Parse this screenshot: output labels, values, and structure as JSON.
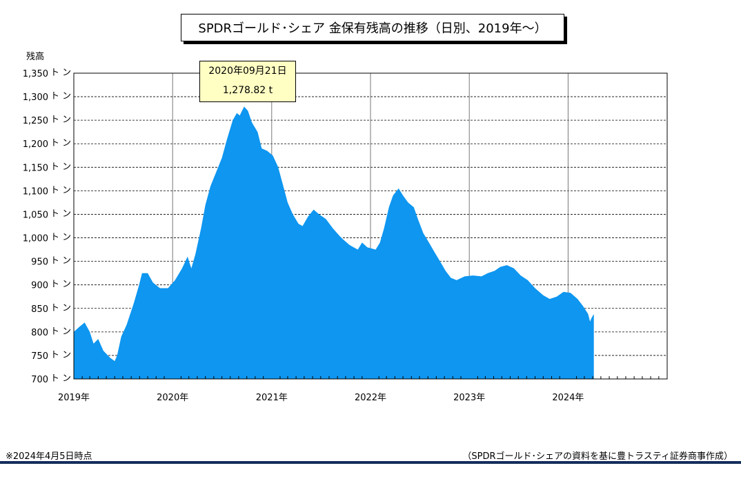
{
  "title": "SPDRゴールド･シェア 金保有残高の推移（日別、2019年～）",
  "y_axis_title": "残高",
  "tooltip": {
    "date": "2020年09月21日",
    "value": "1,278.82 t"
  },
  "footnote_left": "※2024年4月5日時点",
  "footnote_right": "（SPDRゴールド･シェアの資料を基に豊トラスティ証券商事作成）",
  "colors": {
    "area": "#0e96f0",
    "tooltip_bg": "#ffffc4",
    "footer_rule": "#142e5c"
  },
  "chart_data": {
    "type": "area",
    "title": "SPDRゴールド･シェア 金保有残高の推移（日別、2019年～）",
    "ylabel": "残高",
    "y_unit_suffix": "ト ン",
    "ylim": [
      700,
      1350
    ],
    "xlim": [
      "2019-01-01",
      "2025-01-01"
    ],
    "grid": true,
    "y_ticks": [
      700,
      750,
      800,
      850,
      900,
      950,
      1000,
      1050,
      1100,
      1150,
      1200,
      1250,
      1300,
      1350
    ],
    "y_tick_labels": [
      "700",
      "750",
      "800",
      "850",
      "900",
      "950",
      "1,000",
      "1,050",
      "1,100",
      "1,150",
      "1,200",
      "1,250",
      "1,300",
      "1,350"
    ],
    "x_ticks": [
      "2019-01-01",
      "2020-01-01",
      "2021-01-01",
      "2022-01-01",
      "2023-01-01",
      "2024-01-01"
    ],
    "x_tick_labels": [
      "2019年",
      "2020年",
      "2021年",
      "2022年",
      "2023年",
      "2024年"
    ],
    "series": [
      {
        "values": [
          [
            "2019-01-01",
            800
          ],
          [
            "2019-01-20",
            810
          ],
          [
            "2019-02-10",
            820
          ],
          [
            "2019-03-01",
            800
          ],
          [
            "2019-03-15",
            775
          ],
          [
            "2019-04-01",
            785
          ],
          [
            "2019-04-20",
            760
          ],
          [
            "2019-05-15",
            745
          ],
          [
            "2019-06-01",
            738
          ],
          [
            "2019-06-10",
            750
          ],
          [
            "2019-06-25",
            790
          ],
          [
            "2019-07-15",
            815
          ],
          [
            "2019-08-10",
            860
          ],
          [
            "2019-08-30",
            900
          ],
          [
            "2019-09-10",
            925
          ],
          [
            "2019-10-01",
            925
          ],
          [
            "2019-10-20",
            905
          ],
          [
            "2019-11-15",
            893
          ],
          [
            "2019-12-15",
            893
          ],
          [
            "2020-01-10",
            910
          ],
          [
            "2020-02-05",
            935
          ],
          [
            "2020-02-25",
            960
          ],
          [
            "2020-03-10",
            935
          ],
          [
            "2020-03-25",
            965
          ],
          [
            "2020-04-15",
            1020
          ],
          [
            "2020-05-01",
            1070
          ],
          [
            "2020-05-20",
            1110
          ],
          [
            "2020-06-10",
            1140
          ],
          [
            "2020-07-01",
            1170
          ],
          [
            "2020-07-20",
            1210
          ],
          [
            "2020-08-10",
            1250
          ],
          [
            "2020-08-25",
            1265
          ],
          [
            "2020-09-05",
            1260
          ],
          [
            "2020-09-21",
            1279
          ],
          [
            "2020-10-05",
            1270
          ],
          [
            "2020-10-20",
            1245
          ],
          [
            "2020-11-10",
            1225
          ],
          [
            "2020-11-25",
            1190
          ],
          [
            "2020-12-15",
            1185
          ],
          [
            "2021-01-05",
            1175
          ],
          [
            "2021-01-25",
            1150
          ],
          [
            "2021-02-15",
            1105
          ],
          [
            "2021-03-01",
            1075
          ],
          [
            "2021-03-20",
            1050
          ],
          [
            "2021-04-10",
            1030
          ],
          [
            "2021-04-25",
            1025
          ],
          [
            "2021-05-15",
            1045
          ],
          [
            "2021-06-05",
            1060
          ],
          [
            "2021-06-25",
            1050
          ],
          [
            "2021-07-20",
            1040
          ],
          [
            "2021-08-15",
            1020
          ],
          [
            "2021-09-15",
            1000
          ],
          [
            "2021-10-15",
            985
          ],
          [
            "2021-11-15",
            975
          ],
          [
            "2021-12-01",
            990
          ],
          [
            "2021-12-20",
            980
          ],
          [
            "2022-01-20",
            975
          ],
          [
            "2022-02-05",
            990
          ],
          [
            "2022-02-20",
            1020
          ],
          [
            "2022-03-10",
            1065
          ],
          [
            "2022-03-25",
            1090
          ],
          [
            "2022-04-15",
            1105
          ],
          [
            "2022-05-01",
            1090
          ],
          [
            "2022-05-20",
            1075
          ],
          [
            "2022-06-10",
            1065
          ],
          [
            "2022-06-25",
            1040
          ],
          [
            "2022-07-15",
            1010
          ],
          [
            "2022-08-05",
            990
          ],
          [
            "2022-08-25",
            970
          ],
          [
            "2022-09-15",
            950
          ],
          [
            "2022-10-05",
            930
          ],
          [
            "2022-10-25",
            915
          ],
          [
            "2022-11-15",
            910
          ],
          [
            "2022-12-15",
            918
          ],
          [
            "2023-01-15",
            920
          ],
          [
            "2023-02-15",
            918
          ],
          [
            "2023-03-10",
            925
          ],
          [
            "2023-04-05",
            930
          ],
          [
            "2023-04-25",
            938
          ],
          [
            "2023-05-20",
            942
          ],
          [
            "2023-06-15",
            935
          ],
          [
            "2023-07-10",
            920
          ],
          [
            "2023-08-05",
            910
          ],
          [
            "2023-09-01",
            893
          ],
          [
            "2023-10-01",
            878
          ],
          [
            "2023-10-25",
            870
          ],
          [
            "2023-11-20",
            875
          ],
          [
            "2023-12-15",
            885
          ],
          [
            "2024-01-10",
            883
          ],
          [
            "2024-02-05",
            870
          ],
          [
            "2024-02-25",
            855
          ],
          [
            "2024-03-15",
            838
          ],
          [
            "2024-03-22",
            822
          ],
          [
            "2024-03-28",
            830
          ],
          [
            "2024-04-05",
            838
          ]
        ]
      }
    ]
  }
}
